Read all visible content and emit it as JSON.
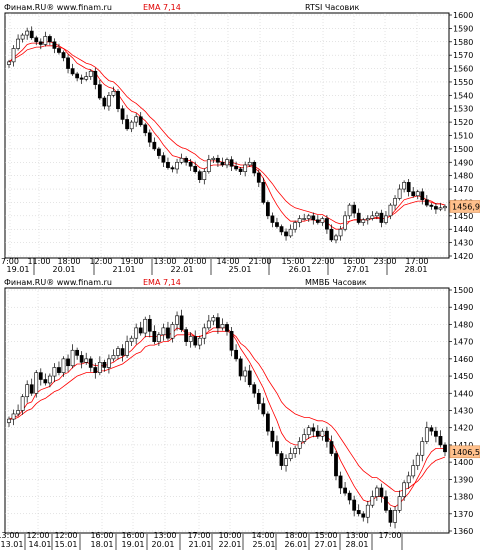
{
  "charts": [
    {
      "id": "rtsi",
      "header": {
        "source": "Финам.RU® www.finam.ru",
        "indicator": "EMA 7,14",
        "instrument": "RTSI Часовик"
      },
      "last_price": "1456,94",
      "y_ticks": [
        "1600",
        "1590",
        "1580",
        "1570",
        "1560",
        "1550",
        "1540",
        "1530",
        "1520",
        "1510",
        "1500",
        "1490",
        "1480",
        "1470",
        "1460",
        "1450",
        "1440",
        "1430",
        "1420"
      ],
      "x_time_labels": [
        "7:00",
        "11:00",
        "18:00",
        "12:00",
        "19:00",
        "13:00",
        "20:00",
        "14:00",
        "21:00",
        "15:00",
        "22:00",
        "16:00",
        "23:00",
        "17:00"
      ],
      "x_date_labels": [
        "19.01",
        "20.01",
        "21.01",
        "22.01",
        "25.01",
        "26.01",
        "27.01",
        "28.01"
      ]
    },
    {
      "id": "mmvb",
      "header": {
        "source": "Финам.RU® www.finam.ru",
        "indicator": "EMA 7,14",
        "instrument": "ММВБ Часовик"
      },
      "last_price": "1406,55",
      "y_ticks": [
        "1500",
        "1490",
        "1480",
        "1470",
        "1460",
        "1450",
        "1440",
        "1430",
        "1420",
        "1410",
        "1400",
        "1390",
        "1380",
        "1370",
        "1360"
      ],
      "x_time_labels": [
        "13:00",
        "12:00",
        "12:00",
        "16:00",
        "16:00",
        "13:00",
        "17:00",
        "10:00",
        "14:00",
        "18:00",
        "15:00",
        "13:00",
        "17:00"
      ],
      "x_date_labels": [
        "13.01",
        "14.01",
        "15.01",
        "18.01",
        "19.01",
        "20.01",
        "21.01",
        "22.01",
        "25.01",
        "26.01",
        "27.01",
        "28.01"
      ]
    }
  ],
  "chart_data": [
    {
      "type": "candlestick",
      "title": "RTSI Часовик",
      "ylim": [
        1420,
        1600
      ],
      "indicator": "EMA 7,14",
      "colors": {
        "up": "#ffffff",
        "down": "#000000",
        "ema": "#ff0000",
        "grid": "#c8c8c8",
        "price_tag": "#ffc08c"
      },
      "close": [
        1565,
        1575,
        1582,
        1585,
        1588,
        1583,
        1580,
        1578,
        1584,
        1580,
        1575,
        1572,
        1568,
        1560,
        1556,
        1553,
        1552,
        1554,
        1558,
        1548,
        1538,
        1532,
        1540,
        1543,
        1530,
        1522,
        1515,
        1520,
        1524,
        1518,
        1512,
        1505,
        1500,
        1495,
        1490,
        1486,
        1485,
        1490,
        1493,
        1490,
        1487,
        1483,
        1477,
        1483,
        1492,
        1493,
        1490,
        1488,
        1492,
        1487,
        1485,
        1483,
        1488,
        1490,
        1482,
        1475,
        1460,
        1450,
        1445,
        1442,
        1438,
        1435,
        1440,
        1445,
        1448,
        1448,
        1450,
        1447,
        1445,
        1448,
        1440,
        1432,
        1435,
        1440,
        1450,
        1458,
        1452,
        1445,
        1447,
        1448,
        1450,
        1452,
        1445,
        1450,
        1458,
        1463,
        1470,
        1475,
        1468,
        1465,
        1468,
        1462,
        1458,
        1457,
        1455,
        1456,
        1457
      ],
      "ema_fast": [
        1565,
        1568,
        1571,
        1574,
        1578,
        1579,
        1579,
        1579,
        1580,
        1580,
        1579,
        1577,
        1575,
        1571,
        1568,
        1564,
        1562,
        1560,
        1559,
        1557,
        1552,
        1548,
        1546,
        1545,
        1541,
        1536,
        1531,
        1528,
        1527,
        1524,
        1521,
        1517,
        1512,
        1508,
        1503,
        1499,
        1495,
        1494,
        1493,
        1492,
        1491,
        1489,
        1486,
        1485,
        1487,
        1488,
        1488,
        1488,
        1489,
        1488,
        1487,
        1486,
        1486,
        1487,
        1486,
        1483,
        1478,
        1471,
        1464,
        1458,
        1453,
        1449,
        1446,
        1446,
        1446,
        1446,
        1447,
        1447,
        1446,
        1447,
        1445,
        1442,
        1440,
        1440,
        1442,
        1446,
        1447,
        1447,
        1447,
        1447,
        1448,
        1449,
        1448,
        1448,
        1450,
        1454,
        1458,
        1462,
        1463,
        1464,
        1465,
        1464,
        1462,
        1461,
        1459,
        1459,
        1458
      ],
      "ema_slow": [
        1565,
        1567,
        1569,
        1571,
        1574,
        1575,
        1576,
        1576,
        1577,
        1577,
        1577,
        1576,
        1575,
        1573,
        1570,
        1568,
        1566,
        1564,
        1563,
        1561,
        1558,
        1554,
        1551,
        1550,
        1547,
        1543,
        1539,
        1536,
        1534,
        1531,
        1528,
        1524,
        1521,
        1517,
        1513,
        1509,
        1506,
        1503,
        1501,
        1500,
        1498,
        1496,
        1493,
        1491,
        1491,
        1491,
        1491,
        1490,
        1490,
        1490,
        1489,
        1488,
        1488,
        1488,
        1487,
        1485,
        1482,
        1478,
        1474,
        1469,
        1465,
        1461,
        1458,
        1456,
        1455,
        1454,
        1453,
        1452,
        1451,
        1451,
        1449,
        1447,
        1445,
        1444,
        1445,
        1446,
        1447,
        1447,
        1447,
        1447,
        1448,
        1448,
        1448,
        1448,
        1450,
        1452,
        1455,
        1458,
        1459,
        1460,
        1461,
        1461,
        1461,
        1460,
        1459,
        1459,
        1458
      ]
    },
    {
      "type": "candlestick",
      "title": "ММВБ Часовик",
      "ylim": [
        1360,
        1500
      ],
      "indicator": "EMA 7,14",
      "colors": {
        "up": "#ffffff",
        "down": "#000000",
        "ema": "#ff0000",
        "grid": "#c8c8c8",
        "price_tag": "#ffc08c"
      },
      "close": [
        1425,
        1428,
        1430,
        1438,
        1445,
        1440,
        1452,
        1448,
        1446,
        1450,
        1455,
        1452,
        1460,
        1456,
        1465,
        1462,
        1458,
        1460,
        1455,
        1452,
        1458,
        1455,
        1460,
        1462,
        1466,
        1462,
        1470,
        1472,
        1478,
        1475,
        1483,
        1476,
        1470,
        1474,
        1478,
        1472,
        1480,
        1485,
        1477,
        1470,
        1473,
        1468,
        1472,
        1478,
        1482,
        1484,
        1478,
        1480,
        1476,
        1465,
        1460,
        1450,
        1453,
        1445,
        1440,
        1434,
        1428,
        1418,
        1412,
        1405,
        1398,
        1402,
        1405,
        1408,
        1412,
        1416,
        1420,
        1418,
        1415,
        1418,
        1412,
        1405,
        1392,
        1385,
        1382,
        1378,
        1372,
        1370,
        1368,
        1375,
        1380,
        1385,
        1380,
        1372,
        1365,
        1372,
        1380,
        1388,
        1392,
        1398,
        1404,
        1412,
        1420,
        1418,
        1415,
        1410,
        1406
      ],
      "ema_fast": [
        1425,
        1426,
        1427,
        1430,
        1434,
        1435,
        1440,
        1442,
        1443,
        1444,
        1447,
        1448,
        1451,
        1452,
        1455,
        1457,
        1457,
        1458,
        1457,
        1456,
        1456,
        1456,
        1457,
        1458,
        1460,
        1461,
        1463,
        1465,
        1468,
        1470,
        1473,
        1473,
        1473,
        1473,
        1474,
        1474,
        1475,
        1478,
        1477,
        1475,
        1475,
        1473,
        1473,
        1474,
        1476,
        1478,
        1478,
        1478,
        1478,
        1475,
        1471,
        1466,
        1462,
        1458,
        1453,
        1448,
        1443,
        1436,
        1430,
        1424,
        1417,
        1413,
        1411,
        1410,
        1410,
        1412,
        1414,
        1415,
        1415,
        1416,
        1415,
        1412,
        1407,
        1401,
        1396,
        1391,
        1386,
        1382,
        1378,
        1377,
        1378,
        1380,
        1380,
        1378,
        1375,
        1374,
        1376,
        1379,
        1382,
        1386,
        1391,
        1396,
        1402,
        1406,
        1408,
        1408,
        1408
      ],
      "ema_slow": [
        1425,
        1425,
        1426,
        1428,
        1430,
        1431,
        1434,
        1436,
        1437,
        1439,
        1441,
        1442,
        1444,
        1446,
        1448,
        1450,
        1451,
        1452,
        1452,
        1452,
        1453,
        1453,
        1454,
        1455,
        1456,
        1457,
        1459,
        1461,
        1463,
        1464,
        1467,
        1468,
        1468,
        1469,
        1470,
        1470,
        1472,
        1474,
        1474,
        1474,
        1474,
        1473,
        1473,
        1474,
        1475,
        1476,
        1476,
        1476,
        1476,
        1475,
        1473,
        1469,
        1467,
        1464,
        1460,
        1457,
        1453,
        1448,
        1444,
        1440,
        1435,
        1432,
        1430,
        1428,
        1427,
        1426,
        1426,
        1425,
        1424,
        1424,
        1423,
        1421,
        1418,
        1414,
        1410,
        1406,
        1402,
        1398,
        1395,
        1393,
        1391,
        1391,
        1389,
        1387,
        1385,
        1383,
        1383,
        1384,
        1385,
        1387,
        1389,
        1392,
        1396,
        1399,
        1401,
        1402,
        1403
      ]
    }
  ]
}
